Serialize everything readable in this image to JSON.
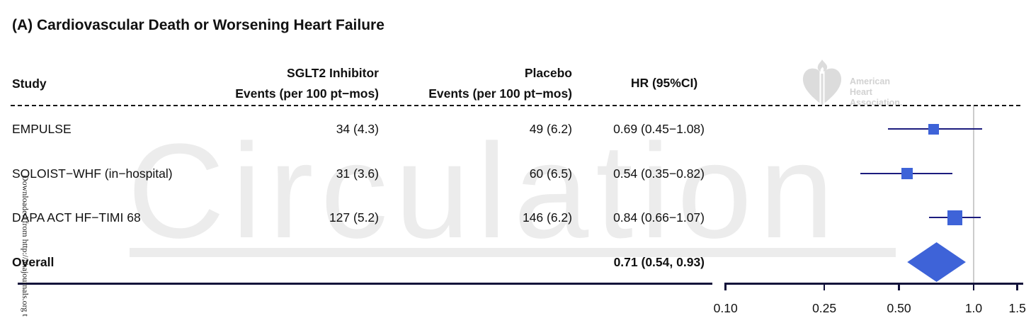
{
  "title": "(A) Cardiovascular Death or Worsening Heart Failure",
  "table": {
    "headers": {
      "study": "Study",
      "sglt2": "SGLT2 Inhibitor\nEvents (per 100 pt−mos)",
      "placebo": "Placebo\nEvents (per 100 pt−mos)",
      "hr": "HR (95%CI)"
    },
    "rows": [
      {
        "study": "EMPULSE",
        "sglt2": "34 (4.3)",
        "placebo": "49 (6.2)",
        "hr": "0.69 (0.45−1.08)"
      },
      {
        "study": "SOLOIST−WHF (in−hospital)",
        "sglt2": "31 (3.6)",
        "placebo": "60 (6.5)",
        "hr": "0.54 (0.35−0.82)"
      },
      {
        "study": "DAPA ACT HF−TIMI 68",
        "sglt2": "127 (5.2)",
        "placebo": "146 (6.2)",
        "hr": "0.84 (0.66−1.07)"
      }
    ],
    "overall": {
      "label": "Overall",
      "hr": "0.71 (0.54, 0.93)"
    }
  },
  "chart_data": {
    "type": "forest",
    "title": "(A) Cardiovascular Death or Worsening Heart Failure",
    "x_scale": "log10",
    "x_axis_label": "",
    "x_ticks": [
      0.1,
      0.25,
      0.5,
      1.0,
      1.5
    ],
    "x_tick_labels": [
      "0.10",
      "0.25",
      "0.50",
      "1.0",
      "1.5"
    ],
    "axis_range": [
      0.1,
      1.5
    ],
    "reference_line": 1.0,
    "studies": [
      {
        "name": "EMPULSE",
        "hr": 0.69,
        "ci_low": 0.45,
        "ci_high": 1.08,
        "marker_size": 15
      },
      {
        "name": "SOLOIST−WHF (in−hospital)",
        "hr": 0.54,
        "ci_low": 0.35,
        "ci_high": 0.82,
        "marker_size": 16
      },
      {
        "name": "DAPA ACT HF−TIMI 68",
        "hr": 0.84,
        "ci_low": 0.66,
        "ci_high": 1.07,
        "marker_size": 21
      }
    ],
    "overall": {
      "name": "Overall",
      "hr": 0.71,
      "ci_low": 0.54,
      "ci_high": 0.93
    },
    "colors": {
      "marker": "#3E63D8",
      "ci_line": "#1C1C7E",
      "axis": "#12123A",
      "reference_line": "#CCCCCC"
    },
    "legend": "none",
    "grid": "off"
  },
  "watermarks": {
    "journal": "Circulation",
    "download_notice": "Downloaded from http://ahajournals.org t",
    "aha_logo": {
      "line1": "American",
      "line2": "Heart",
      "line3": "Association."
    }
  }
}
